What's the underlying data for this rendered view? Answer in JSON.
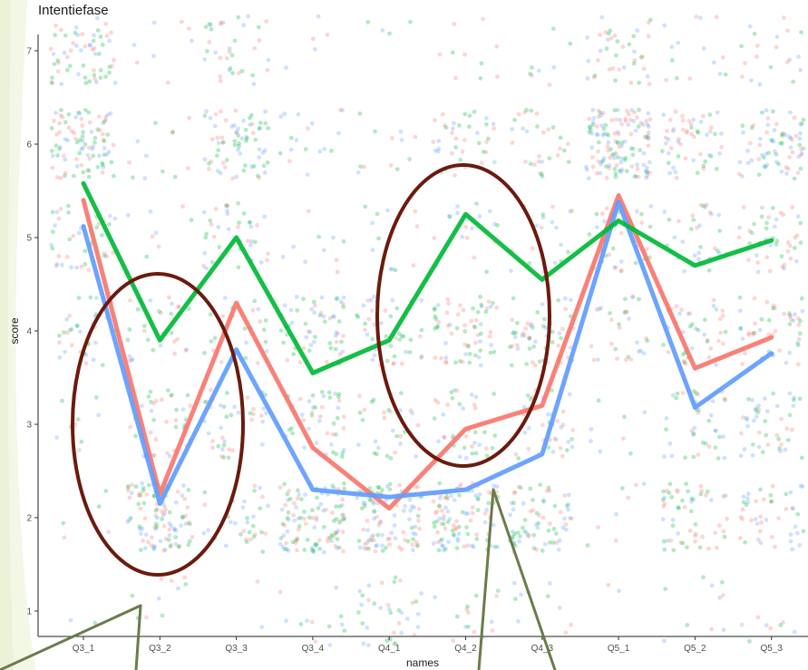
{
  "slide": {
    "title": "Intentiefase"
  },
  "chart_data": {
    "type": "line",
    "title": "Intentiefase",
    "xlabel": "names",
    "ylabel": "score",
    "categories": [
      "Q3_1",
      "Q3_2",
      "Q3_3",
      "Q3_4",
      "Q4_1",
      "Q4_2",
      "Q4_3",
      "Q5_1",
      "Q5_2",
      "Q5_3"
    ],
    "y_ticks": [
      "1",
      "2",
      "3",
      "4",
      "5",
      "6",
      "7"
    ],
    "ylim": [
      0.75,
      7.1
    ],
    "grid": false,
    "legend": "none",
    "series": [
      {
        "color": "#F8766D",
        "values": [
          5.4,
          2.25,
          4.3,
          2.75,
          2.1,
          2.95,
          3.2,
          5.45,
          3.6,
          3.93
        ]
      },
      {
        "color": "#619CFF",
        "values": [
          5.12,
          2.15,
          3.8,
          2.3,
          2.22,
          2.3,
          2.68,
          5.38,
          3.18,
          3.76
        ]
      },
      {
        "color": "#00BA38",
        "values": [
          5.58,
          3.9,
          5.0,
          3.55,
          3.9,
          5.25,
          4.55,
          5.18,
          4.7,
          4.97
        ]
      }
    ],
    "jitter_rows": [
      {
        "category": "Q3_1",
        "counts": [
          2,
          5,
          10,
          35,
          40,
          90,
          60
        ]
      },
      {
        "category": "Q3_2",
        "counts": [
          10,
          100,
          40,
          30,
          8,
          12,
          8
        ]
      },
      {
        "category": "Q3_3",
        "counts": [
          2,
          35,
          40,
          25,
          40,
          70,
          35
        ]
      },
      {
        "category": "Q3_4",
        "counts": [
          12,
          110,
          45,
          60,
          10,
          18,
          5
        ]
      },
      {
        "category": "Q4_1",
        "counts": [
          35,
          100,
          30,
          45,
          12,
          12,
          4
        ]
      },
      {
        "category": "Q4_2",
        "counts": [
          15,
          100,
          40,
          65,
          18,
          40,
          10
        ]
      },
      {
        "category": "Q4_3",
        "counts": [
          10,
          70,
          40,
          60,
          20,
          30,
          8
        ]
      },
      {
        "category": "Q5_1",
        "counts": [
          2,
          8,
          8,
          30,
          40,
          130,
          40
        ]
      },
      {
        "category": "Q5_2",
        "counts": [
          10,
          55,
          40,
          45,
          35,
          55,
          15
        ]
      },
      {
        "category": "Q5_3",
        "counts": [
          8,
          45,
          45,
          50,
          45,
          70,
          20
        ]
      }
    ],
    "jitter_colors": [
      "#F8766D",
      "#619CFF",
      "#00BA38"
    ],
    "highlight_ovals": [
      {
        "color": "#6B1A0E",
        "span": [
          "Q3_1",
          "Q3_3"
        ]
      },
      {
        "color": "#6B1A0E",
        "span": [
          "Q4_1",
          "Q4_3"
        ]
      }
    ],
    "callout_color": "#6B7B4B"
  }
}
